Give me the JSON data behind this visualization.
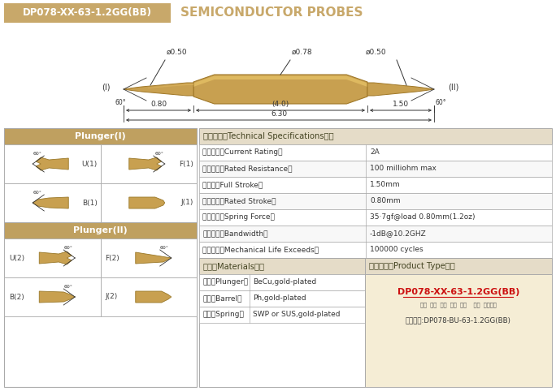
{
  "title_box_text": "DP078-XX-63-1.2GG(BB)",
  "title_text_color": "#FFFFFF",
  "subtitle_text": "SEMICONDUCTOR PROBES",
  "gold_color": "#C8A86A",
  "gold_light": "#D4B07A",
  "gold_header": "#BFA060",
  "probe_gold": "#C8A050",
  "probe_light": "#E0B860",
  "probe_shadow": "#A07828",
  "border_color": "#AAAAAA",
  "border_dark": "#888888",
  "bg_color": "#FFFFFF",
  "dim_color": "#333333",
  "text_dark": "#333333",
  "text_red": "#CC1111",
  "specs": [
    [
      "额定电流（Current Rating）",
      "2A"
    ],
    [
      "额定电阻（Rated Resistance）",
      "100 milliohm max"
    ],
    [
      "满行程（Full Stroke）",
      "1.50mm"
    ],
    [
      "额定行程（Rated Stroke）",
      "0.80mm"
    ],
    [
      "额定弹力（Spring Force）",
      "35·7gf@load 0.80mm(1.2oz)"
    ],
    [
      "频率带宽（Bandwidth）",
      "-1dB@10.2GHZ"
    ],
    [
      "测试寿命（Mechanical Life Exceeds）",
      "100000 cycles"
    ]
  ],
  "materials": [
    [
      "针头（Plunger）",
      "BeCu,gold-plated"
    ],
    [
      "针管（Barrel）",
      "Ph,gold-plated"
    ],
    [
      "弹簧（Spring）",
      "SWP or SUS,gold-plated"
    ]
  ],
  "plunger1_title": "Plunger(I)",
  "plunger2_title": "Plunger(II)",
  "tech_title": "技术要求（Technical Specifications）：",
  "materials_title": "材质（Materials）：",
  "product_type_title": "成品型号（Product Type）：",
  "product_type_code": "DP078-XX-63-1.2GG(BB)",
  "product_labels": "系列  规格  头型  总长  弹力    镀金  针头材质",
  "order_example": "订购举例:DP078-BU-63-1.2GG(BB)"
}
